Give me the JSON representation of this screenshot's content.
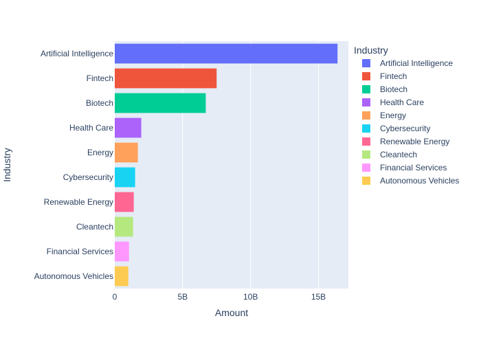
{
  "chart_data": {
    "type": "bar",
    "orientation": "horizontal",
    "title": "",
    "xlabel": "Amount",
    "ylabel": "Industry",
    "xlim": [
      0,
      17200000000
    ],
    "xticks": [
      {
        "value": 0,
        "label": "0"
      },
      {
        "value": 5000000000,
        "label": "5B"
      },
      {
        "value": 10000000000,
        "label": "10B"
      },
      {
        "value": 15000000000,
        "label": "15B"
      }
    ],
    "grid": true,
    "legend_title": "Industry",
    "legend_position": "right",
    "categories": [
      "Artificial Intelligence",
      "Fintech",
      "Biotech",
      "Health Care",
      "Energy",
      "Cybersecurity",
      "Renewable Energy",
      "Cleantech",
      "Financial Services",
      "Autonomous Vehicles"
    ],
    "series": [
      {
        "name": "Artificial Intelligence",
        "category": "Artificial Intelligence",
        "value": 16400000000,
        "color": "#636efa"
      },
      {
        "name": "Fintech",
        "category": "Fintech",
        "value": 7500000000,
        "color": "#EF553B"
      },
      {
        "name": "Biotech",
        "category": "Biotech",
        "value": 6700000000,
        "color": "#00cc96"
      },
      {
        "name": "Health Care",
        "category": "Health Care",
        "value": 1950000000,
        "color": "#ab63fa"
      },
      {
        "name": "Energy",
        "category": "Energy",
        "value": 1700000000,
        "color": "#FFA15A"
      },
      {
        "name": "Cybersecurity",
        "category": "Cybersecurity",
        "value": 1500000000,
        "color": "#19d3f3"
      },
      {
        "name": "Renewable Energy",
        "category": "Renewable Energy",
        "value": 1400000000,
        "color": "#FF6692"
      },
      {
        "name": "Cleantech",
        "category": "Cleantech",
        "value": 1350000000,
        "color": "#B6E880"
      },
      {
        "name": "Financial Services",
        "category": "Financial Services",
        "value": 1050000000,
        "color": "#FF97FF"
      },
      {
        "name": "Autonomous Vehicles",
        "category": "Autonomous Vehicles",
        "value": 1000000000,
        "color": "#FECB52"
      }
    ],
    "colors": {
      "plot_background": "#e5ecf6",
      "gridline": "#ffffff",
      "text": "#2a3f5f"
    }
  }
}
